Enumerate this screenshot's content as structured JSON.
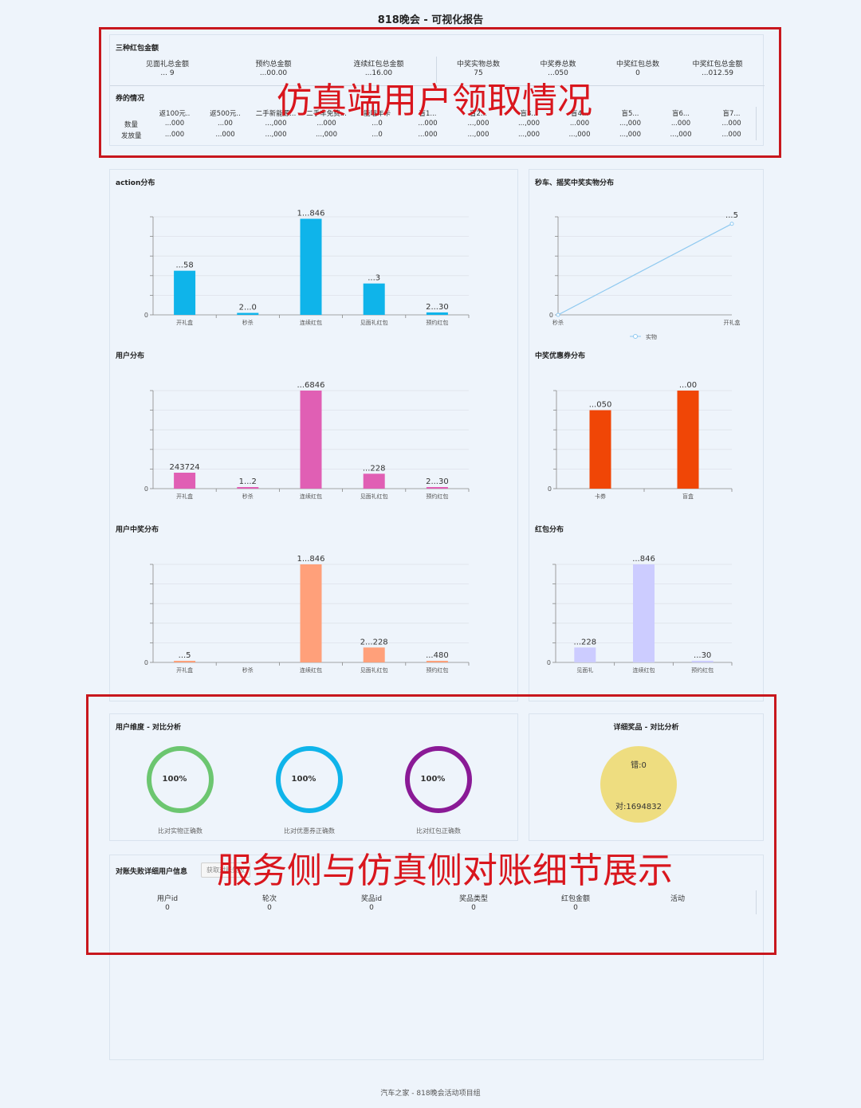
{
  "page_title": "818晚会 - 可视化报告",
  "footer": "汽车之家 - 818晚会活动项目组",
  "overlays": {
    "top": "仿真端用户领取情况",
    "bottom": "服务侧与仿真侧对账细节展示"
  },
  "red_envelope": {
    "title": "三种红包金额",
    "stats": [
      {
        "label": "见面礼总金额",
        "value": "... 9"
      },
      {
        "label": "预约总金额",
        "value": "...00.00"
      },
      {
        "label": "连续红包总金额",
        "value": "...16.00"
      },
      {
        "label": "中奖实物总数",
        "value": "75"
      },
      {
        "label": "中奖券总数",
        "value": "...050"
      },
      {
        "label": "中奖红包总数",
        "value": "0"
      },
      {
        "label": "中奖红包总金额",
        "value": "...012.59"
      }
    ]
  },
  "coupons": {
    "title": "券的情况",
    "row_labels": [
      "数量",
      "发放量"
    ],
    "columns": [
      {
        "name": "返100元..",
        "qty": "...000",
        "issued": "...000"
      },
      {
        "name": "返500元..",
        "qty": "...00",
        "issued": "...000"
      },
      {
        "name": "二手新能源...",
        "qty": "...,000",
        "issued": "...,000"
      },
      {
        "name": "二手车免费...",
        "qty": "...000",
        "issued": "...,000"
      },
      {
        "name": "能喵年卡",
        "qty": "...0",
        "issued": "...0"
      },
      {
        "name": "盲1...",
        "qty": "...000",
        "issued": "...000"
      },
      {
        "name": "盲2...",
        "qty": "...,000",
        "issued": "...,000"
      },
      {
        "name": "盲3...",
        "qty": "...,000",
        "issued": "...,000"
      },
      {
        "name": "盲4...",
        "qty": "...000",
        "issued": "...,000"
      },
      {
        "name": "盲5...",
        "qty": "...,000",
        "issued": "...,000"
      },
      {
        "name": "盲6...",
        "qty": "...000",
        "issued": "...,000"
      },
      {
        "name": "盲7...",
        "qty": "...000",
        "issued": "...000"
      }
    ]
  },
  "colors": {
    "action": "#0fb4ea",
    "user": "#e05fb4",
    "user_win": "#ffa07a",
    "coupon": "#f04606",
    "redpacket": "#ccccff",
    "line": "#8fc9f0",
    "ring_green": "#6cc670",
    "ring_blue": "#0fb4ea",
    "ring_purple": "#8a1a96",
    "circle_yellow": "#eedd80",
    "red_box": "#c8171d"
  },
  "chart_data": [
    {
      "id": "action",
      "type": "bar",
      "title": "action分布",
      "categories": [
        "开礼盒",
        "秒杀",
        "连续红包",
        "见面礼红包",
        "预约红包"
      ],
      "values": [
        45000,
        2000,
        98000,
        32000,
        2500
      ],
      "labels": [
        "...58",
        "2...0",
        "1...846",
        "...3",
        "2...30"
      ],
      "ylim": [
        0,
        100000
      ]
    },
    {
      "id": "seckill",
      "type": "line",
      "title": "秒车、摇奖中奖实物分布",
      "categories": [
        "秒杀",
        "开礼盒"
      ],
      "series": [
        {
          "name": "实物",
          "values": [
            0,
            65
          ]
        }
      ],
      "labels": [
        "...5"
      ],
      "ylim": [
        0,
        70
      ]
    },
    {
      "id": "user",
      "type": "bar",
      "title": "用户分布",
      "categories": [
        "开礼盒",
        "秒杀",
        "连续红包",
        "见面礼红包",
        "预约红包"
      ],
      "values": [
        243724,
        2000,
        1500000,
        228000,
        2300
      ],
      "labels": [
        "243724",
        "1...2",
        "...6846",
        "...228",
        "2...30"
      ],
      "ylim": [
        0,
        1500000
      ]
    },
    {
      "id": "coupon",
      "type": "bar",
      "title": "中奖优惠券分布",
      "categories": [
        "卡券",
        "盲盒"
      ],
      "values": [
        56000,
        70000
      ],
      "labels": [
        "...050",
        "...00"
      ],
      "ylim": [
        0,
        70000
      ]
    },
    {
      "id": "user_win",
      "type": "bar",
      "title": "用户中奖分布",
      "categories": [
        "开礼盒",
        "秒杀",
        "连续红包",
        "见面礼红包",
        "预约红包"
      ],
      "values": [
        500,
        0,
        1500000,
        228000,
        480
      ],
      "labels": [
        "...5",
        "",
        "1...846",
        "2...228",
        "...480"
      ],
      "ylim": [
        0,
        1500000
      ]
    },
    {
      "id": "redpacket",
      "type": "bar",
      "title": "红包分布",
      "categories": [
        "见面礼",
        "连续红包",
        "预约红包"
      ],
      "values": [
        228000,
        1500000,
        2300
      ],
      "labels": [
        "...228",
        "...846",
        "...30"
      ],
      "ylim": [
        0,
        1500000
      ]
    }
  ],
  "user_dimension": {
    "title": "用户维度 - 对比分析",
    "rings": [
      {
        "pct": "100%",
        "label": "比对实物正确数"
      },
      {
        "pct": "100%",
        "label": "比对优惠券正确数"
      },
      {
        "pct": "100%",
        "label": "比对红包正确数"
      }
    ]
  },
  "prize_detail": {
    "title": "详细奖品 - 对比分析",
    "wrong": "错:0",
    "right": "对:1694832"
  },
  "failed_users": {
    "title": "对账失败详细用户信息",
    "button": "获取对账失败",
    "columns": [
      {
        "label": "用户id",
        "value": "0"
      },
      {
        "label": "轮次",
        "value": "0"
      },
      {
        "label": "奖品id",
        "value": "0"
      },
      {
        "label": "奖品类型",
        "value": "0"
      },
      {
        "label": "红包金额",
        "value": "0"
      },
      {
        "label": "活动",
        "value": ""
      }
    ]
  }
}
